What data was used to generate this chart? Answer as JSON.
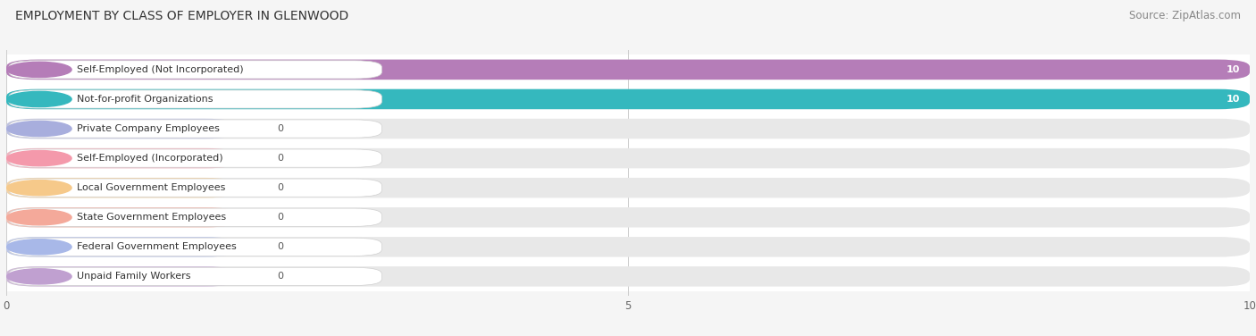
{
  "title": "EMPLOYMENT BY CLASS OF EMPLOYER IN GLENWOOD",
  "source": "Source: ZipAtlas.com",
  "categories": [
    "Self-Employed (Not Incorporated)",
    "Not-for-profit Organizations",
    "Private Company Employees",
    "Self-Employed (Incorporated)",
    "Local Government Employees",
    "State Government Employees",
    "Federal Government Employees",
    "Unpaid Family Workers"
  ],
  "values": [
    10,
    10,
    0,
    0,
    0,
    0,
    0,
    0
  ],
  "bar_colors": [
    "#b57db8",
    "#35b8be",
    "#a8aedd",
    "#f499ab",
    "#f6c98a",
    "#f4a99a",
    "#a8b8e8",
    "#c0a0d0"
  ],
  "xlim": [
    0,
    10
  ],
  "xticks": [
    0,
    5,
    10
  ],
  "background_color": "#f5f5f5",
  "bar_bg_color": "#e8e8e8",
  "bar_height": 0.68,
  "title_fontsize": 10,
  "source_fontsize": 8.5,
  "label_fontsize": 8,
  "value_fontsize": 8
}
